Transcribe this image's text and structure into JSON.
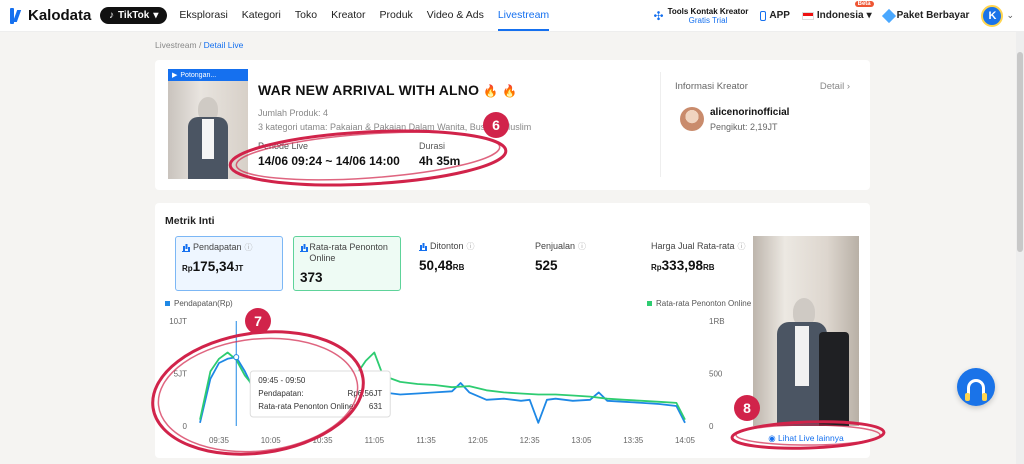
{
  "nav": {
    "logo": "Kalodata",
    "platform": "TikTok",
    "items": [
      {
        "label": "Eksplorasi",
        "active": false
      },
      {
        "label": "Kategori",
        "active": false
      },
      {
        "label": "Toko",
        "active": false
      },
      {
        "label": "Kreator",
        "active": false
      },
      {
        "label": "Produk",
        "active": false
      },
      {
        "label": "Video & Ads",
        "active": false
      },
      {
        "label": "Livestream",
        "active": true
      }
    ],
    "tools_title": "Tools Kontak Kreator",
    "tools_sub": "Gratis Trial",
    "app": "APP",
    "language": "Indonesia",
    "beta": "Beta",
    "plan": "Paket Berbayar",
    "avatar_letter": "K"
  },
  "breadcrumb": {
    "root": "Livestream",
    "sep": " / ",
    "current": "Detail Live"
  },
  "live": {
    "badge": "Potongan...",
    "title": "WAR NEW ARRIVAL WITH ALNO",
    "fire": "🔥 🔥",
    "product_count": "Jumlah Produk: 4",
    "categories": "3 kategori utama: Pakaian & Pakaian Dalam Wanita, Busana Muslim",
    "period_label": "Periode Live",
    "period_value": "14/06 09:24 ~ 14/06 14:00",
    "duration_label": "Durasi",
    "duration_value": "4h 35m"
  },
  "creator": {
    "section_label": "Informasi Kreator",
    "detail_link": "Detail",
    "name": "alicenorinofficial",
    "followers": "Pengikut: 2,19JT"
  },
  "metrics": {
    "title": "Metrik Inti",
    "kpis": [
      {
        "label": "Pendapatan",
        "prefix": "Rp",
        "value": "175,34",
        "suffix": "JT"
      },
      {
        "label": "Rata-rata Penonton Online",
        "prefix": "",
        "value": "373",
        "suffix": ""
      },
      {
        "label": "Ditonton",
        "prefix": "",
        "value": "50,48",
        "suffix": "RB"
      },
      {
        "label": "Penjualan",
        "prefix": "",
        "value": "525",
        "suffix": ""
      },
      {
        "label": "Harga Jual Rata-rata",
        "prefix": "Rp",
        "value": "333,98",
        "suffix": "RB"
      }
    ],
    "see_more": "Lihat Live lainnya"
  },
  "tooltip": {
    "time": "09:45 - 09:50",
    "row1_label": "Pendapatan:",
    "row1_value": "Rp6,56JT",
    "row2_label": "Rata-rata Penonton Online:",
    "row2_value": "631"
  },
  "annotations": [
    "6",
    "7",
    "8"
  ],
  "colors": {
    "revenue": "#1e88e5",
    "viewers": "#2ecc71",
    "annotation": "#d1234a",
    "accent": "#1570ef"
  },
  "chart_data": {
    "type": "line",
    "legend_left": "Pendapatan(Rp)",
    "legend_right": "Rata-rata Penonton Online",
    "left_ticks": [
      "0",
      "5JT",
      "10JT"
    ],
    "right_ticks": [
      "0",
      "500",
      "1RB"
    ],
    "x_tick_labels": [
      "09:35",
      "10:05",
      "10:35",
      "11:05",
      "11:35",
      "12:05",
      "12:35",
      "13:05",
      "13:35",
      "14:05"
    ],
    "x_tick_minutes": [
      575,
      605,
      635,
      665,
      695,
      725,
      755,
      785,
      815,
      845
    ],
    "x_range_minutes": [
      564,
      845
    ],
    "y_left_range": [
      0,
      10000000
    ],
    "y_right_range": [
      0,
      1000
    ],
    "series": [
      {
        "name": "Pendapatan(Rp)",
        "axis": "left",
        "x": [
          564,
          570,
          575,
          580,
          585,
          590,
          595,
          600,
          610,
          620,
          630,
          640,
          650,
          655,
          660,
          665,
          670,
          680,
          690,
          700,
          710,
          715,
          720,
          730,
          740,
          750,
          755,
          760,
          765,
          770,
          780,
          790,
          795,
          800,
          810,
          820,
          830,
          840,
          845
        ],
        "y": [
          300000,
          4500000,
          6000000,
          6400000,
          6560000,
          5200000,
          3500000,
          2300000,
          2000000,
          1800000,
          1900000,
          1700000,
          1900000,
          2600000,
          3000000,
          3300000,
          3200000,
          3000000,
          3100000,
          3200000,
          3300000,
          4100000,
          3200000,
          2500000,
          2600000,
          2400000,
          2500000,
          300000,
          2500000,
          2600000,
          2400000,
          2500000,
          3200000,
          2400000,
          2300000,
          2200000,
          2100000,
          1900000,
          300000
        ]
      },
      {
        "name": "Rata-rata Penonton Online",
        "axis": "right",
        "x": [
          564,
          570,
          575,
          580,
          585,
          590,
          595,
          600,
          610,
          620,
          630,
          640,
          650,
          655,
          660,
          665,
          670,
          680,
          690,
          700,
          710,
          720,
          730,
          740,
          750,
          760,
          770,
          780,
          790,
          800,
          810,
          820,
          830,
          840,
          845
        ],
        "y": [
          60,
          520,
          640,
          700,
          631,
          480,
          380,
          360,
          340,
          330,
          410,
          450,
          470,
          500,
          620,
          700,
          480,
          420,
          400,
          390,
          370,
          380,
          340,
          320,
          310,
          300,
          300,
          290,
          280,
          260,
          250,
          240,
          230,
          220,
          60
        ]
      }
    ],
    "hover_minute": 585
  }
}
